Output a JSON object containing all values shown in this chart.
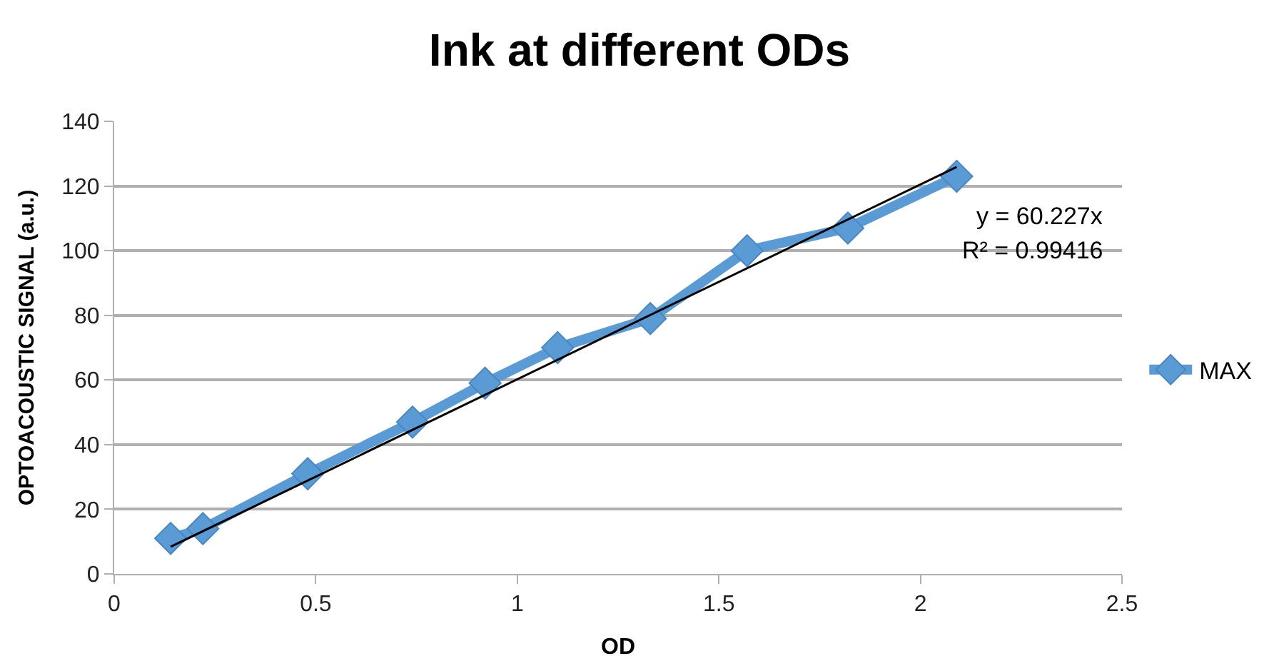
{
  "chart_data": {
    "type": "line",
    "title": "Ink at different ODs",
    "xlabel": "OD",
    "ylabel": "OPTOACOUSTIC SIGNAL (a.u.)",
    "x": [
      0.14,
      0.22,
      0.48,
      0.74,
      0.92,
      1.1,
      1.33,
      1.57,
      1.82,
      2.09
    ],
    "series": [
      {
        "name": "MAX",
        "color": "#5b9bd5",
        "values": [
          11,
          14,
          31,
          47,
          59,
          70,
          79,
          100,
          107,
          123
        ],
        "marker": "diamond"
      },
      {
        "type": "line",
        "color": "#000000",
        "x": [
          0.14,
          2.09
        ],
        "values": [
          8.4,
          125.9
        ],
        "marker": "none"
      }
    ],
    "annotations": [
      "y = 60.227x",
      "R² = 0.99416"
    ],
    "xlim": [
      0,
      2.5
    ],
    "xticks": [
      0,
      0.5,
      1,
      1.5,
      2,
      2.5
    ],
    "ylim": [
      0,
      140
    ],
    "yticks": [
      0,
      20,
      40,
      60,
      80,
      100,
      120,
      140
    ],
    "grid": "y",
    "legend": "right",
    "line_style": "solid"
  }
}
